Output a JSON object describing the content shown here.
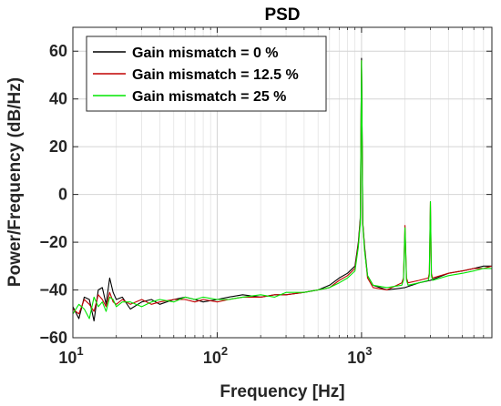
{
  "chart_data": {
    "type": "line",
    "title": "PSD",
    "xlabel": "Frequency [Hz]",
    "ylabel": "Power/Frequency (dB/Hz)",
    "x_scale": "log",
    "xlim": [
      10,
      8000
    ],
    "ylim": [
      -60,
      70
    ],
    "x_ticks": [
      {
        "value": 10,
        "base": "10",
        "exp": "1"
      },
      {
        "value": 100,
        "base": "10",
        "exp": "2"
      },
      {
        "value": 1000,
        "base": "10",
        "exp": "3"
      }
    ],
    "y_ticks": [
      -60,
      -40,
      -20,
      0,
      20,
      40,
      60
    ],
    "grid": true,
    "minor_grid": true,
    "legend_position": "top-left",
    "colors": {
      "axis": "#262626",
      "grid": "#e3e3e3",
      "background": "#ffffff"
    },
    "series": [
      {
        "name": "Gain mismatch = 0 %",
        "color": "#000000",
        "x": [
          10,
          11,
          12,
          13,
          14,
          15,
          16,
          17,
          18,
          19,
          20,
          22,
          25,
          30,
          35,
          40,
          50,
          60,
          70,
          80,
          100,
          120,
          150,
          200,
          250,
          300,
          400,
          500,
          600,
          700,
          800,
          900,
          950,
          980,
          1000,
          1020,
          1050,
          1100,
          1200,
          1500,
          2000,
          2500,
          3000,
          4000,
          5000,
          6000,
          7000,
          8000
        ],
        "y": [
          -47,
          -52,
          -43,
          -44,
          -53,
          -40,
          -39,
          -46,
          -35,
          -41,
          -44,
          -43,
          -48,
          -45,
          -44,
          -46,
          -44,
          -43,
          -44,
          -45,
          -44,
          -43,
          -42,
          -43,
          -42,
          -42,
          -41,
          -40,
          -38,
          -35,
          -33,
          -30,
          -20,
          -10,
          57,
          -12,
          -22,
          -34,
          -38,
          -40,
          -39,
          -37,
          -36,
          -33,
          -32,
          -31,
          -30,
          -30
        ]
      },
      {
        "name": "Gain mismatch = 12.5 %",
        "color": "#c00000",
        "x": [
          10,
          11,
          12,
          13,
          14,
          15,
          16,
          17,
          18,
          19,
          20,
          22,
          25,
          30,
          35,
          40,
          50,
          60,
          70,
          80,
          100,
          120,
          150,
          200,
          250,
          300,
          400,
          500,
          600,
          700,
          800,
          900,
          950,
          980,
          1000,
          1020,
          1050,
          1100,
          1200,
          1500,
          1900,
          1950,
          2000,
          2050,
          2100,
          2500,
          2900,
          2950,
          3000,
          3050,
          3100,
          4000,
          5000,
          6000,
          7000,
          8000
        ],
        "y": [
          -48,
          -50,
          -44,
          -46,
          -49,
          -42,
          -44,
          -47,
          -41,
          -45,
          -46,
          -44,
          -46,
          -44,
          -46,
          -45,
          -44,
          -44,
          -45,
          -44,
          -45,
          -44,
          -43,
          -43,
          -42,
          -42,
          -41,
          -40,
          -39,
          -36,
          -34,
          -31,
          -21,
          -11,
          56,
          -12,
          -23,
          -35,
          -39,
          -40,
          -37,
          -35,
          -13,
          -35,
          -37,
          -36,
          -35,
          -33,
          -3,
          -33,
          -35,
          -33,
          -32,
          -31,
          -31,
          -30
        ]
      },
      {
        "name": "Gain mismatch = 25 %",
        "color": "#00e600",
        "x": [
          10,
          11,
          12,
          13,
          14,
          15,
          16,
          17,
          18,
          19,
          20,
          22,
          25,
          30,
          35,
          40,
          50,
          60,
          70,
          80,
          100,
          120,
          150,
          200,
          250,
          300,
          400,
          500,
          600,
          700,
          800,
          900,
          950,
          980,
          1000,
          1020,
          1050,
          1100,
          1200,
          1500,
          1900,
          1950,
          2000,
          2050,
          2100,
          2500,
          2900,
          2950,
          3000,
          3050,
          3100,
          4000,
          5000,
          6000,
          7000,
          8000
        ],
        "y": [
          -50,
          -46,
          -48,
          -52,
          -43,
          -47,
          -45,
          -49,
          -43,
          -44,
          -47,
          -45,
          -45,
          -47,
          -45,
          -44,
          -45,
          -43,
          -44,
          -43,
          -44,
          -44,
          -43,
          -42,
          -43,
          -41,
          -41,
          -40,
          -39,
          -37,
          -35,
          -32,
          -22,
          -12,
          56,
          -13,
          -24,
          -34,
          -38,
          -39,
          -38,
          -36,
          -14,
          -36,
          -38,
          -37,
          -36,
          -34,
          -3,
          -34,
          -36,
          -34,
          -33,
          -32,
          -31,
          -31
        ]
      }
    ]
  }
}
